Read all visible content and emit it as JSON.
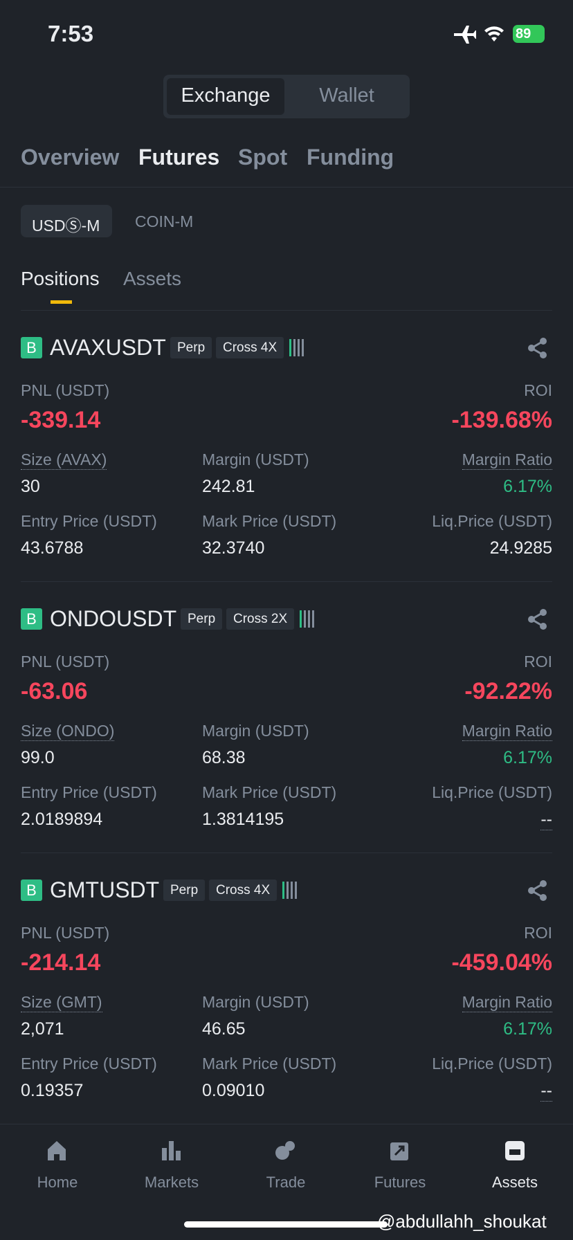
{
  "status": {
    "time": "7:53",
    "battery": "89"
  },
  "toggle": [
    "Exchange",
    "Wallet"
  ],
  "tabs": [
    "Overview",
    "Futures",
    "Spot",
    "Funding"
  ],
  "subtabs": [
    "USDⓈ-M",
    "COIN-M"
  ],
  "section_tabs": [
    "Positions",
    "Assets"
  ],
  "positions": [
    {
      "badge": "B",
      "symbol": "AVAXUSDT",
      "type": "Perp",
      "margin_mode": "Cross 4X",
      "pnl_label": "PNL (USDT)",
      "pnl": "-339.14",
      "roi_label": "ROI",
      "roi": "-139.68%",
      "fields": [
        {
          "label": "Size (AVAX)",
          "value": "30"
        },
        {
          "label": "Margin (USDT)",
          "value": "242.81"
        },
        {
          "label": "Margin Ratio",
          "value": "6.17%"
        },
        {
          "label": "Entry Price (USDT)",
          "value": "43.6788"
        },
        {
          "label": "Mark Price (USDT)",
          "value": "32.3740"
        },
        {
          "label": "Liq.Price (USDT)",
          "value": "24.9285"
        }
      ]
    },
    {
      "badge": "B",
      "symbol": "ONDOUSDT",
      "type": "Perp",
      "margin_mode": "Cross 2X",
      "pnl_label": "PNL (USDT)",
      "pnl": "-63.06",
      "roi_label": "ROI",
      "roi": "-92.22%",
      "fields": [
        {
          "label": "Size (ONDO)",
          "value": "99.0"
        },
        {
          "label": "Margin (USDT)",
          "value": "68.38"
        },
        {
          "label": "Margin Ratio",
          "value": "6.17%"
        },
        {
          "label": "Entry Price (USDT)",
          "value": "2.0189894"
        },
        {
          "label": "Mark Price (USDT)",
          "value": "1.3814195"
        },
        {
          "label": "Liq.Price (USDT)",
          "value": "--"
        }
      ]
    },
    {
      "badge": "B",
      "symbol": "GMTUSDT",
      "type": "Perp",
      "margin_mode": "Cross 4X",
      "pnl_label": "PNL (USDT)",
      "pnl": "-214.14",
      "roi_label": "ROI",
      "roi": "-459.04%",
      "fields": [
        {
          "label": "Size (GMT)",
          "value": "2,071"
        },
        {
          "label": "Margin (USDT)",
          "value": "46.65"
        },
        {
          "label": "Margin Ratio",
          "value": "6.17%"
        },
        {
          "label": "Entry Price (USDT)",
          "value": "0.19357"
        },
        {
          "label": "Mark Price (USDT)",
          "value": "0.09010"
        },
        {
          "label": "Liq.Price (USDT)",
          "value": "--"
        }
      ]
    }
  ],
  "nav": [
    "Home",
    "Markets",
    "Trade",
    "Futures",
    "Assets"
  ],
  "watermark": "@abdullahh_shoukat"
}
